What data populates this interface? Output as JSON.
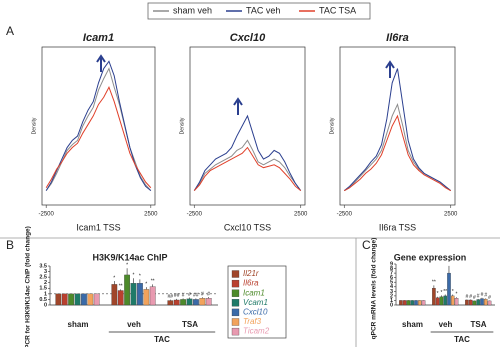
{
  "legend_box": true,
  "chart_data": [
    {
      "type": "line",
      "panel": "A",
      "title": "Icam1",
      "xlabel": "Icam1 TSS",
      "ylabel": "Density",
      "x": [
        -2500,
        -2250,
        -2000,
        -1750,
        -1500,
        -1250,
        -1000,
        -750,
        -500,
        -250,
        0,
        250,
        500,
        750,
        1000,
        1250,
        1500,
        1750,
        2000,
        2250,
        2500
      ],
      "xlim": [
        -2700,
        2700
      ],
      "xticks": [
        -2500,
        2500
      ],
      "ylim": [
        0,
        1.1
      ],
      "series": [
        {
          "name": "sham veh",
          "color": "#8c8c8c",
          "values": [
            0.1,
            0.15,
            0.22,
            0.3,
            0.38,
            0.42,
            0.45,
            0.55,
            0.62,
            0.68,
            0.8,
            0.88,
            0.95,
            0.82,
            0.7,
            0.55,
            0.4,
            0.3,
            0.2,
            0.14,
            0.1
          ]
        },
        {
          "name": "TAC veh",
          "color": "#2b3f8f",
          "values": [
            0.1,
            0.16,
            0.24,
            0.32,
            0.4,
            0.45,
            0.48,
            0.58,
            0.66,
            0.72,
            0.85,
            0.95,
            1.0,
            0.9,
            0.72,
            0.56,
            0.4,
            0.28,
            0.19,
            0.13,
            0.1
          ]
        },
        {
          "name": "TAC TSA",
          "color": "#e0402a",
          "values": [
            0.12,
            0.18,
            0.25,
            0.3,
            0.36,
            0.4,
            0.43,
            0.5,
            0.56,
            0.62,
            0.7,
            0.75,
            0.82,
            0.72,
            0.6,
            0.48,
            0.36,
            0.28,
            0.22,
            0.16,
            0.12
          ]
        }
      ]
    },
    {
      "type": "line",
      "title": "Cxcl10",
      "xlabel": "Cxcl10 TSS",
      "ylabel": "Density",
      "x": [
        -2500,
        -2250,
        -2000,
        -1750,
        -1500,
        -1250,
        -1000,
        -750,
        -500,
        -250,
        0,
        250,
        500,
        750,
        1000,
        1250,
        1500,
        1750,
        2000,
        2250,
        2500
      ],
      "xlim": [
        -2700,
        2700
      ],
      "xticks": [
        -2500,
        2500
      ],
      "ylim": [
        0,
        1.1
      ],
      "series": [
        {
          "color": "#8c8c8c",
          "values": [
            0.1,
            0.15,
            0.22,
            0.25,
            0.28,
            0.3,
            0.32,
            0.34,
            0.38,
            0.4,
            0.45,
            0.38,
            0.3,
            0.28,
            0.3,
            0.32,
            0.3,
            0.26,
            0.2,
            0.15,
            0.1
          ]
        },
        {
          "color": "#2b3f8f",
          "values": [
            0.1,
            0.16,
            0.24,
            0.28,
            0.32,
            0.34,
            0.36,
            0.4,
            0.48,
            0.55,
            0.62,
            0.5,
            0.38,
            0.32,
            0.34,
            0.38,
            0.36,
            0.3,
            0.22,
            0.15,
            0.1
          ]
        },
        {
          "color": "#e0402a",
          "values": [
            0.1,
            0.14,
            0.2,
            0.24,
            0.26,
            0.28,
            0.3,
            0.32,
            0.34,
            0.36,
            0.4,
            0.34,
            0.28,
            0.26,
            0.27,
            0.28,
            0.26,
            0.22,
            0.18,
            0.13,
            0.1
          ]
        }
      ]
    },
    {
      "type": "line",
      "title": "Il6ra",
      "xlabel": "Il6ra TSS",
      "ylabel": "Density",
      "x": [
        -2500,
        -2250,
        -2000,
        -1750,
        -1500,
        -1250,
        -1000,
        -750,
        -500,
        -250,
        0,
        250,
        500,
        750,
        1000,
        1250,
        1500,
        1750,
        2000,
        2250,
        2500
      ],
      "xlim": [
        -2700,
        2700
      ],
      "xticks": [
        -2500,
        2500
      ],
      "ylim": [
        0,
        1.1
      ],
      "series": [
        {
          "color": "#8c8c8c",
          "values": [
            0.1,
            0.12,
            0.16,
            0.2,
            0.24,
            0.28,
            0.32,
            0.38,
            0.5,
            0.62,
            0.7,
            0.55,
            0.38,
            0.3,
            0.25,
            0.22,
            0.2,
            0.18,
            0.16,
            0.13,
            0.1
          ]
        },
        {
          "color": "#2b3f8f",
          "values": [
            0.1,
            0.13,
            0.17,
            0.21,
            0.25,
            0.3,
            0.34,
            0.42,
            0.6,
            0.85,
            0.95,
            0.7,
            0.45,
            0.32,
            0.26,
            0.22,
            0.2,
            0.18,
            0.16,
            0.13,
            0.1
          ]
        },
        {
          "color": "#e0402a",
          "values": [
            0.1,
            0.12,
            0.15,
            0.18,
            0.22,
            0.25,
            0.29,
            0.35,
            0.45,
            0.55,
            0.62,
            0.48,
            0.35,
            0.28,
            0.24,
            0.21,
            0.19,
            0.17,
            0.15,
            0.12,
            0.1
          ]
        }
      ]
    },
    {
      "type": "bar",
      "panel": "B",
      "title": "H3K9/K14ac ChIP",
      "ylabel": "qPCR for H3K9/K14ac ChIP (fold change)",
      "categories": [
        "sham",
        "veh",
        "TSA"
      ],
      "group_label": "TAC",
      "ylim": [
        0,
        3.5
      ],
      "yticks": [
        0,
        0.5,
        1,
        1.5,
        2,
        2.5,
        3,
        3.5
      ],
      "refline": 1,
      "series": [
        {
          "name": "Il21r",
          "color": "#a0462a",
          "values": [
            1,
            1.85,
            0.4
          ],
          "errors": [
            0.02,
            0.3,
            0.08
          ],
          "marks": [
            null,
            "*",
            "##"
          ]
        },
        {
          "name": "Il6ra",
          "color": "#b9402f",
          "values": [
            1,
            1.3,
            0.45
          ],
          "errors": [
            0.02,
            0.1,
            0.1
          ],
          "marks": [
            null,
            "**",
            "##"
          ]
        },
        {
          "name": "Icam1",
          "color": "#4d8a2a",
          "values": [
            1,
            2.7,
            0.5
          ],
          "errors": [
            0.02,
            0.6,
            0.1
          ],
          "marks": [
            null,
            "*",
            "#"
          ]
        },
        {
          "name": "Vcam1",
          "color": "#1f7a68",
          "values": [
            1,
            1.95,
            0.55
          ],
          "errors": [
            0.02,
            0.45,
            0.12
          ],
          "marks": [
            null,
            "*",
            "#"
          ]
        },
        {
          "name": "Cxcl10",
          "color": "#3a6aa8",
          "values": [
            1,
            1.95,
            0.5
          ],
          "errors": [
            0.02,
            0.35,
            0.1
          ],
          "marks": [
            null,
            "*",
            "##"
          ]
        },
        {
          "name": "Traf3",
          "color": "#f2a35c",
          "values": [
            1,
            1.4,
            0.6
          ],
          "errors": [
            0.02,
            0.2,
            0.1
          ],
          "marks": [
            null,
            "*",
            "#"
          ]
        },
        {
          "name": "Ticam2",
          "color": "#e89ab0",
          "values": [
            1,
            1.65,
            0.6
          ],
          "errors": [
            0.02,
            0.2,
            0.12
          ],
          "marks": [
            null,
            "**",
            "#"
          ]
        }
      ]
    },
    {
      "type": "bar",
      "panel": "C",
      "title": "Gene expression",
      "ylabel": "qPCR mRNA levels (fold change)",
      "categories": [
        "sham",
        "veh",
        "TSA"
      ],
      "group_label": "TAC",
      "ylim": [
        0,
        9
      ],
      "yticks": [
        0,
        1,
        2,
        3,
        4,
        5,
        6,
        7,
        8,
        9
      ],
      "series": [
        {
          "color": "#a0462a",
          "values": [
            1,
            3.7,
            1.1
          ],
          "errors": [
            0.05,
            0.6,
            0.1
          ],
          "marks": [
            null,
            "**",
            "#"
          ]
        },
        {
          "color": "#b9402f",
          "values": [
            1,
            1.6,
            1.1
          ],
          "errors": [
            0.05,
            0.2,
            0.1
          ],
          "marks": [
            null,
            "*",
            "#"
          ]
        },
        {
          "color": "#4d8a2a",
          "values": [
            1,
            1.8,
            0.9
          ],
          "errors": [
            0.05,
            0.3,
            0.1
          ],
          "marks": [
            null,
            "*",
            "#"
          ]
        },
        {
          "color": "#1f7a68",
          "values": [
            1,
            2.0,
            1.2
          ],
          "errors": [
            0.05,
            0.3,
            0.1
          ],
          "marks": [
            null,
            "**",
            "#"
          ]
        },
        {
          "color": "#3a6aa8",
          "values": [
            1,
            7.0,
            1.4
          ],
          "errors": [
            0.05,
            1.6,
            0.2
          ],
          "marks": [
            null,
            "*",
            "#"
          ]
        },
        {
          "color": "#f2a35c",
          "values": [
            1,
            2.0,
            1.3
          ],
          "errors": [
            0.05,
            0.3,
            0.15
          ],
          "marks": [
            null,
            "*",
            "#"
          ]
        },
        {
          "color": "#e89ab0",
          "values": [
            1,
            1.5,
            0.9
          ],
          "errors": [
            0.05,
            0.2,
            0.1
          ],
          "marks": [
            null,
            "*",
            "#"
          ]
        }
      ]
    }
  ]
}
